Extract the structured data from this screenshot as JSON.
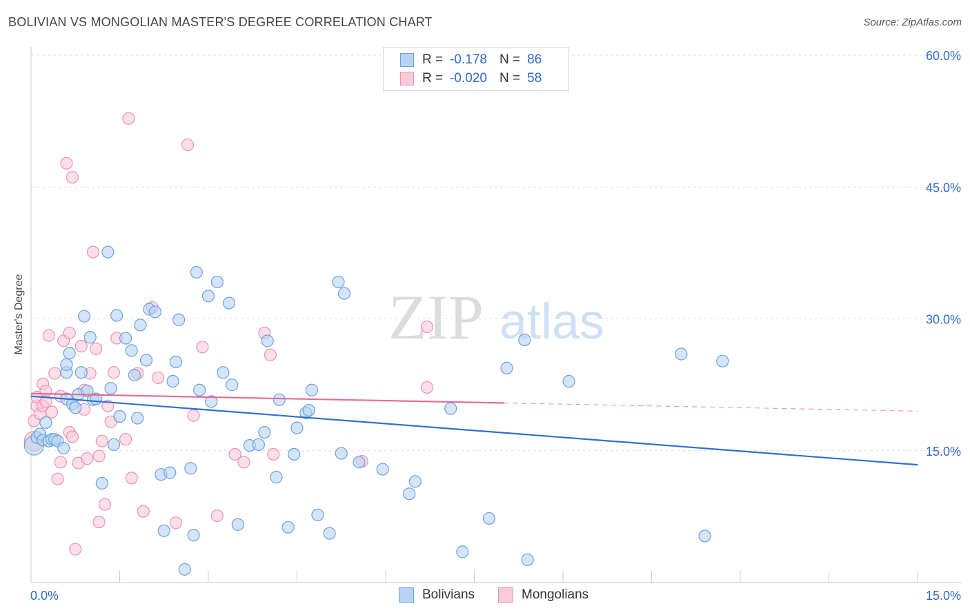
{
  "title": "BOLIVIAN VS MONGOLIAN MASTER'S DEGREE CORRELATION CHART",
  "source": "Source: ZipAtlas.com",
  "watermark": {
    "part1": "ZIP",
    "part2": "atlas"
  },
  "legend_top": {
    "rows": [
      {
        "r_label": "R =",
        "r_value": "-0.178",
        "n_label": "N =",
        "n_value": "86"
      },
      {
        "r_label": "R =",
        "r_value": "-0.020",
        "n_label": "N =",
        "n_value": "58"
      }
    ]
  },
  "legend_bottom": [
    "Bolivians",
    "Mongolians"
  ],
  "colors": {
    "bolivians_fill": "#b8d3f5",
    "bolivians_stroke": "#6c9fde",
    "bolivians_line": "#2f6fcc",
    "mongolians_fill": "#f9cad8",
    "mongolians_stroke": "#ea93ae",
    "mongolians_line": "#e66a96",
    "axis_label": "#2d6bcc",
    "grid": "#dddddd"
  },
  "chart_data": {
    "type": "scatter",
    "title": "BOLIVIAN VS MONGOLIAN MASTER'S DEGREE CORRELATION CHART",
    "xlabel": "",
    "ylabel": "Master's Degree",
    "xlim": [
      0,
      15
    ],
    "ylim": [
      0,
      60
    ],
    "x_tick_labels": [
      "0.0%",
      "15.0%"
    ],
    "y_tick_labels": [
      {
        "value": 15,
        "label": "15.0%"
      },
      {
        "value": 30,
        "label": "30.0%"
      },
      {
        "value": 45,
        "label": "45.0%"
      },
      {
        "value": 60,
        "label": "60.0%"
      }
    ],
    "series": [
      {
        "name": "Bolivians",
        "R": -0.178,
        "N": 86,
        "trend": {
          "x": [
            0,
            15
          ],
          "y": [
            21.2,
            13.4
          ],
          "solid_to": 15
        },
        "points": [
          [
            0.05,
            15.6
          ],
          [
            0.1,
            16.5
          ],
          [
            0.15,
            16.9
          ],
          [
            0.2,
            16.2
          ],
          [
            0.25,
            18.2
          ],
          [
            0.3,
            16.1
          ],
          [
            0.35,
            16.3
          ],
          [
            0.4,
            16.3
          ],
          [
            0.45,
            16.1
          ],
          [
            0.55,
            15.3
          ],
          [
            0.6,
            20.9
          ],
          [
            0.6,
            23.9
          ],
          [
            0.6,
            24.8
          ],
          [
            0.65,
            26.1
          ],
          [
            0.7,
            20.3
          ],
          [
            0.75,
            19.9
          ],
          [
            0.8,
            21.4
          ],
          [
            0.85,
            23.9
          ],
          [
            0.9,
            30.3
          ],
          [
            0.95,
            21.8
          ],
          [
            1.0,
            27.9
          ],
          [
            1.05,
            20.8
          ],
          [
            1.1,
            20.9
          ],
          [
            1.2,
            11.3
          ],
          [
            1.3,
            37.6
          ],
          [
            1.35,
            22.1
          ],
          [
            1.4,
            15.7
          ],
          [
            1.45,
            30.4
          ],
          [
            1.5,
            18.9
          ],
          [
            1.6,
            27.8
          ],
          [
            1.7,
            26.4
          ],
          [
            1.75,
            23.6
          ],
          [
            1.8,
            18.7
          ],
          [
            1.85,
            29.3
          ],
          [
            1.95,
            25.3
          ],
          [
            2.0,
            31.1
          ],
          [
            2.1,
            30.8
          ],
          [
            2.2,
            12.3
          ],
          [
            2.25,
            5.9
          ],
          [
            2.35,
            12.5
          ],
          [
            2.4,
            22.9
          ],
          [
            2.45,
            25.1
          ],
          [
            2.5,
            29.9
          ],
          [
            2.6,
            1.5
          ],
          [
            2.7,
            13.0
          ],
          [
            2.75,
            5.4
          ],
          [
            2.8,
            35.3
          ],
          [
            2.85,
            21.9
          ],
          [
            3.0,
            32.6
          ],
          [
            3.05,
            20.6
          ],
          [
            3.15,
            34.2
          ],
          [
            3.25,
            23.9
          ],
          [
            3.35,
            31.8
          ],
          [
            3.4,
            22.5
          ],
          [
            3.5,
            6.6
          ],
          [
            3.7,
            15.6
          ],
          [
            3.85,
            15.7
          ],
          [
            3.95,
            17.1
          ],
          [
            4.0,
            27.5
          ],
          [
            4.15,
            12.0
          ],
          [
            4.2,
            20.8
          ],
          [
            4.35,
            6.3
          ],
          [
            4.45,
            14.6
          ],
          [
            4.5,
            17.6
          ],
          [
            4.65,
            19.3
          ],
          [
            4.7,
            19.6
          ],
          [
            4.75,
            21.9
          ],
          [
            4.85,
            7.7
          ],
          [
            5.05,
            5.6
          ],
          [
            5.2,
            34.2
          ],
          [
            5.25,
            14.7
          ],
          [
            5.3,
            32.9
          ],
          [
            5.55,
            13.7
          ],
          [
            5.95,
            12.9
          ],
          [
            6.4,
            10.1
          ],
          [
            6.5,
            11.5
          ],
          [
            7.1,
            19.8
          ],
          [
            7.3,
            3.5
          ],
          [
            7.75,
            7.3
          ],
          [
            8.05,
            24.4
          ],
          [
            8.35,
            27.6
          ],
          [
            8.4,
            2.6
          ],
          [
            9.1,
            22.9
          ],
          [
            11.0,
            26.0
          ],
          [
            11.4,
            5.3
          ],
          [
            11.7,
            25.2
          ]
        ]
      },
      {
        "name": "Mongolians",
        "R": -0.02,
        "N": 58,
        "trend": {
          "x": [
            0,
            15
          ],
          "y": [
            21.5,
            19.5
          ],
          "solid_to": 8.0
        },
        "points": [
          [
            0.05,
            16.1
          ],
          [
            0.05,
            18.4
          ],
          [
            0.1,
            20.1
          ],
          [
            0.1,
            21.1
          ],
          [
            0.15,
            19.2
          ],
          [
            0.2,
            22.6
          ],
          [
            0.2,
            20.1
          ],
          [
            0.25,
            21.8
          ],
          [
            0.25,
            20.6
          ],
          [
            0.3,
            28.1
          ],
          [
            0.35,
            19.4
          ],
          [
            0.4,
            23.8
          ],
          [
            0.45,
            11.8
          ],
          [
            0.5,
            13.7
          ],
          [
            0.5,
            21.2
          ],
          [
            0.55,
            27.5
          ],
          [
            0.6,
            47.7
          ],
          [
            0.65,
            17.1
          ],
          [
            0.65,
            28.4
          ],
          [
            0.7,
            46.1
          ],
          [
            0.7,
            16.6
          ],
          [
            0.75,
            3.8
          ],
          [
            0.8,
            13.6
          ],
          [
            0.85,
            26.9
          ],
          [
            0.9,
            19.7
          ],
          [
            0.9,
            21.9
          ],
          [
            0.95,
            14.1
          ],
          [
            1.0,
            23.8
          ],
          [
            1.05,
            37.6
          ],
          [
            1.1,
            26.6
          ],
          [
            1.15,
            14.4
          ],
          [
            1.15,
            6.9
          ],
          [
            1.2,
            16.1
          ],
          [
            1.25,
            8.9
          ],
          [
            1.3,
            20.1
          ],
          [
            1.35,
            18.3
          ],
          [
            1.4,
            23.9
          ],
          [
            1.45,
            27.8
          ],
          [
            1.6,
            16.3
          ],
          [
            1.65,
            52.8
          ],
          [
            1.7,
            11.9
          ],
          [
            1.8,
            23.8
          ],
          [
            1.9,
            8.1
          ],
          [
            2.05,
            31.3
          ],
          [
            2.15,
            23.3
          ],
          [
            2.45,
            6.8
          ],
          [
            2.65,
            49.8
          ],
          [
            2.75,
            19.0
          ],
          [
            2.9,
            26.8
          ],
          [
            3.15,
            7.6
          ],
          [
            3.45,
            14.6
          ],
          [
            3.6,
            13.7
          ],
          [
            3.95,
            28.4
          ],
          [
            4.05,
            25.9
          ],
          [
            4.1,
            14.6
          ],
          [
            5.6,
            13.8
          ],
          [
            6.7,
            22.2
          ],
          [
            6.7,
            29.1
          ]
        ]
      }
    ]
  }
}
